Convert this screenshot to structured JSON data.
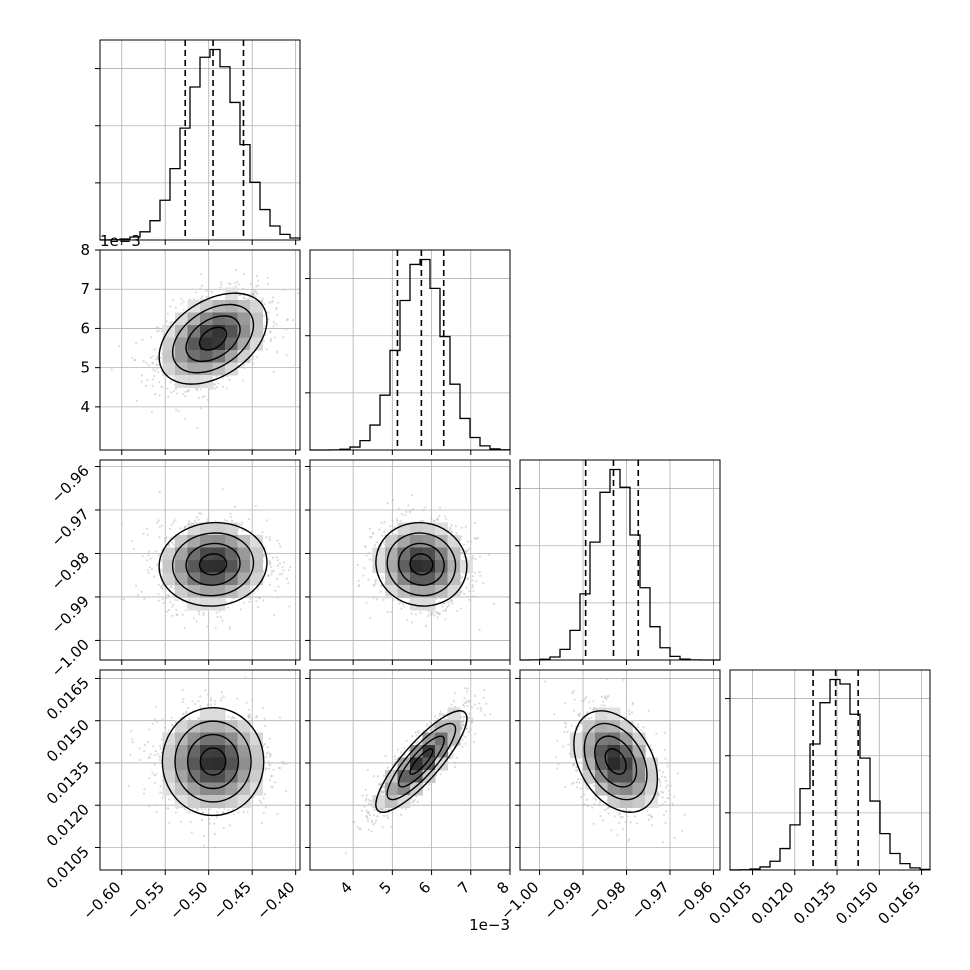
{
  "chart_data": {
    "type": "corner",
    "parameters": [
      {
        "range": [
          -0.625,
          -0.395
        ],
        "ticks": [
          -0.6,
          -0.55,
          -0.5,
          -0.45,
          -0.4
        ],
        "tick_labels": [
          "−0.60",
          "−0.55",
          "−0.50",
          "−0.45",
          "−0.40"
        ],
        "offset_label": "",
        "mean": -0.495,
        "sd": 0.031,
        "quantiles": [
          -0.527,
          -0.495,
          -0.46
        ]
      },
      {
        "range": [
          2.9,
          8.0
        ],
        "ticks": [
          4,
          5,
          6,
          7,
          8
        ],
        "tick_labels": [
          "4",
          "5",
          "6",
          "7",
          "8"
        ],
        "y_tick_labels": [
          "4",
          "5",
          "6",
          "7",
          "8"
        ],
        "offset_label": "1e−3",
        "mean": 5.74,
        "sd": 0.58,
        "quantiles": [
          5.13,
          5.74,
          6.31
        ]
      },
      {
        "range": [
          -1.0045,
          -0.9585
        ],
        "ticks": [
          -1.0,
          -0.99,
          -0.98,
          -0.97,
          -0.96
        ],
        "tick_labels": [
          "−1.00",
          "−0.99",
          "−0.98",
          "−0.97",
          "−0.96"
        ],
        "offset_label": "",
        "mean": -0.9825,
        "sd": 0.0048,
        "quantiles": [
          -0.9894,
          -0.983,
          -0.9773
        ]
      },
      {
        "range": [
          0.0097,
          0.0168
        ],
        "ticks": [
          0.0105,
          0.012,
          0.0135,
          0.015,
          0.0165
        ],
        "tick_labels": [
          "0.0105",
          "0.0120",
          "0.0135",
          "0.0150",
          "0.0165"
        ],
        "offset_label": "",
        "mean": 0.01355,
        "sd": 0.0009,
        "quantiles": [
          0.01265,
          0.01345,
          0.01425
        ]
      }
    ],
    "correlations": {
      "1_0": 0.4,
      "2_0": 0.05,
      "2_1": -0.05,
      "3_0": 0.0,
      "3_1": 0.85,
      "3_2": -0.35
    },
    "histogram_bins": 20,
    "grid": true,
    "contour_levels": [
      0.5,
      1.0,
      1.5,
      2.0
    ]
  },
  "colors": {
    "frame": "#000000",
    "grid": "#b0b0b0",
    "points": "#bdbdbd",
    "contour": "#000000"
  }
}
